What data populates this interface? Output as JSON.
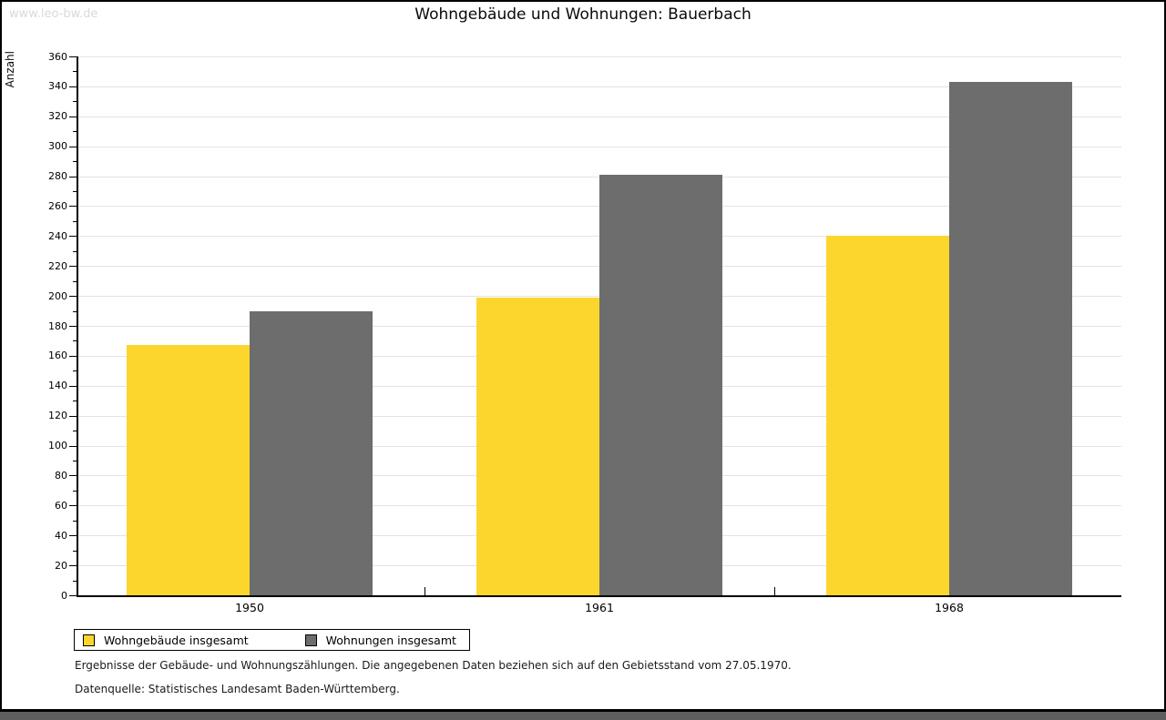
{
  "watermark": "www.leo-bw.de",
  "footer": {
    "line1": "Ergebnisse der Gebäude- und Wohnungszählungen. Die angegebenen Daten beziehen sich auf den Gebietsstand vom 27.05.1970.",
    "line2": "Datenquelle: Statistisches Landesamt Baden-Württemberg."
  },
  "colors": {
    "series1": "#fcd62d",
    "series2": "#6d6d6d",
    "gridline": "#e3e3e3",
    "bottom_strip": "#5e5e5e",
    "watermark": "#d9d9d9"
  },
  "chart_data": {
    "type": "bar",
    "title": "Wohngebäude und Wohnungen: Bauerbach",
    "xlabel": "",
    "ylabel": "Anzahl",
    "categories": [
      "1950",
      "1961",
      "1968"
    ],
    "series": [
      {
        "name": "Wohngebäude insgesamt",
        "color": "#fcd62d",
        "values": [
          167,
          199,
          240
        ]
      },
      {
        "name": "Wohnungen insgesamt",
        "color": "#6d6d6d",
        "values": [
          190,
          281,
          343
        ]
      }
    ],
    "ylim": [
      0,
      360
    ],
    "ytick_step": 20,
    "ytick_minor_step": 10,
    "grid": true,
    "legend_position": "bottom-left"
  }
}
